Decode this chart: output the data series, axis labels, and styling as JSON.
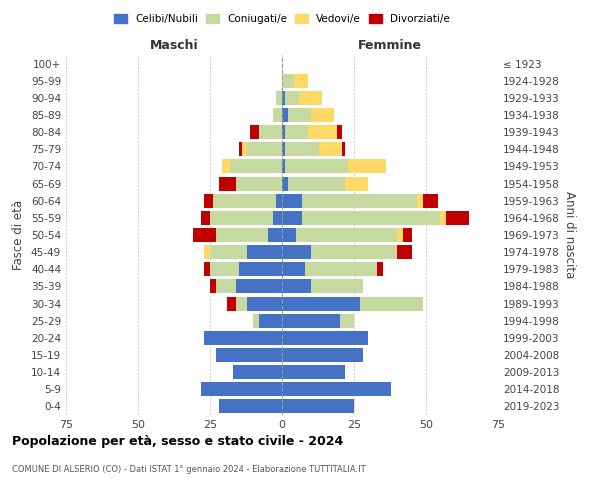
{
  "age_groups": [
    "0-4",
    "5-9",
    "10-14",
    "15-19",
    "20-24",
    "25-29",
    "30-34",
    "35-39",
    "40-44",
    "45-49",
    "50-54",
    "55-59",
    "60-64",
    "65-69",
    "70-74",
    "75-79",
    "80-84",
    "85-89",
    "90-94",
    "95-99",
    "100+"
  ],
  "birth_years": [
    "2019-2023",
    "2014-2018",
    "2009-2013",
    "2004-2008",
    "1999-2003",
    "1994-1998",
    "1989-1993",
    "1984-1988",
    "1979-1983",
    "1974-1978",
    "1969-1973",
    "1964-1968",
    "1959-1963",
    "1954-1958",
    "1949-1953",
    "1944-1948",
    "1939-1943",
    "1934-1938",
    "1929-1933",
    "1924-1928",
    "≤ 1923"
  ],
  "colors": {
    "celibi": "#4472C4",
    "coniugati": "#C5D9A0",
    "vedovi": "#FFD966",
    "divorziati": "#C00000",
    "background": "#FFFFFF",
    "grid": "#AAAAAA",
    "centerline": "#999999"
  },
  "maschi": {
    "celibi": [
      22,
      28,
      17,
      23,
      27,
      8,
      12,
      16,
      15,
      12,
      5,
      3,
      2,
      0,
      0,
      0,
      0,
      0,
      0,
      0,
      0
    ],
    "coniugati": [
      0,
      0,
      0,
      0,
      0,
      2,
      4,
      7,
      10,
      13,
      18,
      22,
      22,
      16,
      18,
      12,
      8,
      3,
      2,
      0,
      0
    ],
    "vedovi": [
      0,
      0,
      0,
      0,
      0,
      0,
      0,
      0,
      0,
      2,
      0,
      0,
      0,
      0,
      3,
      2,
      0,
      0,
      0,
      0,
      0
    ],
    "divorziati": [
      0,
      0,
      0,
      0,
      0,
      0,
      3,
      2,
      2,
      0,
      8,
      3,
      3,
      6,
      0,
      1,
      3,
      0,
      0,
      0,
      0
    ]
  },
  "femmine": {
    "celibi": [
      25,
      38,
      22,
      28,
      30,
      20,
      27,
      10,
      8,
      10,
      5,
      7,
      7,
      2,
      1,
      1,
      1,
      2,
      1,
      0,
      0
    ],
    "coniugati": [
      0,
      0,
      0,
      0,
      0,
      5,
      22,
      18,
      25,
      30,
      35,
      48,
      40,
      20,
      22,
      12,
      8,
      8,
      5,
      4,
      0
    ],
    "vedovi": [
      0,
      0,
      0,
      0,
      0,
      0,
      0,
      0,
      0,
      0,
      2,
      2,
      2,
      8,
      13,
      8,
      10,
      8,
      8,
      5,
      0
    ],
    "divorziati": [
      0,
      0,
      0,
      0,
      0,
      0,
      0,
      0,
      2,
      5,
      3,
      8,
      5,
      0,
      0,
      1,
      2,
      0,
      0,
      0,
      0
    ]
  },
  "xlim": 75,
  "title": "Popolazione per età, sesso e stato civile - 2024",
  "subtitle": "COMUNE DI ALSERIO (CO) - Dati ISTAT 1° gennaio 2024 - Elaborazione TUTTITALIA.IT",
  "ylabel_left": "Fasce di età",
  "ylabel_right": "Anni di nascita",
  "xlabel_maschi": "Maschi",
  "xlabel_femmine": "Femmine",
  "legend_labels": [
    "Celibi/Nubili",
    "Coniugati/e",
    "Vedovi/e",
    "Divorziati/e"
  ]
}
